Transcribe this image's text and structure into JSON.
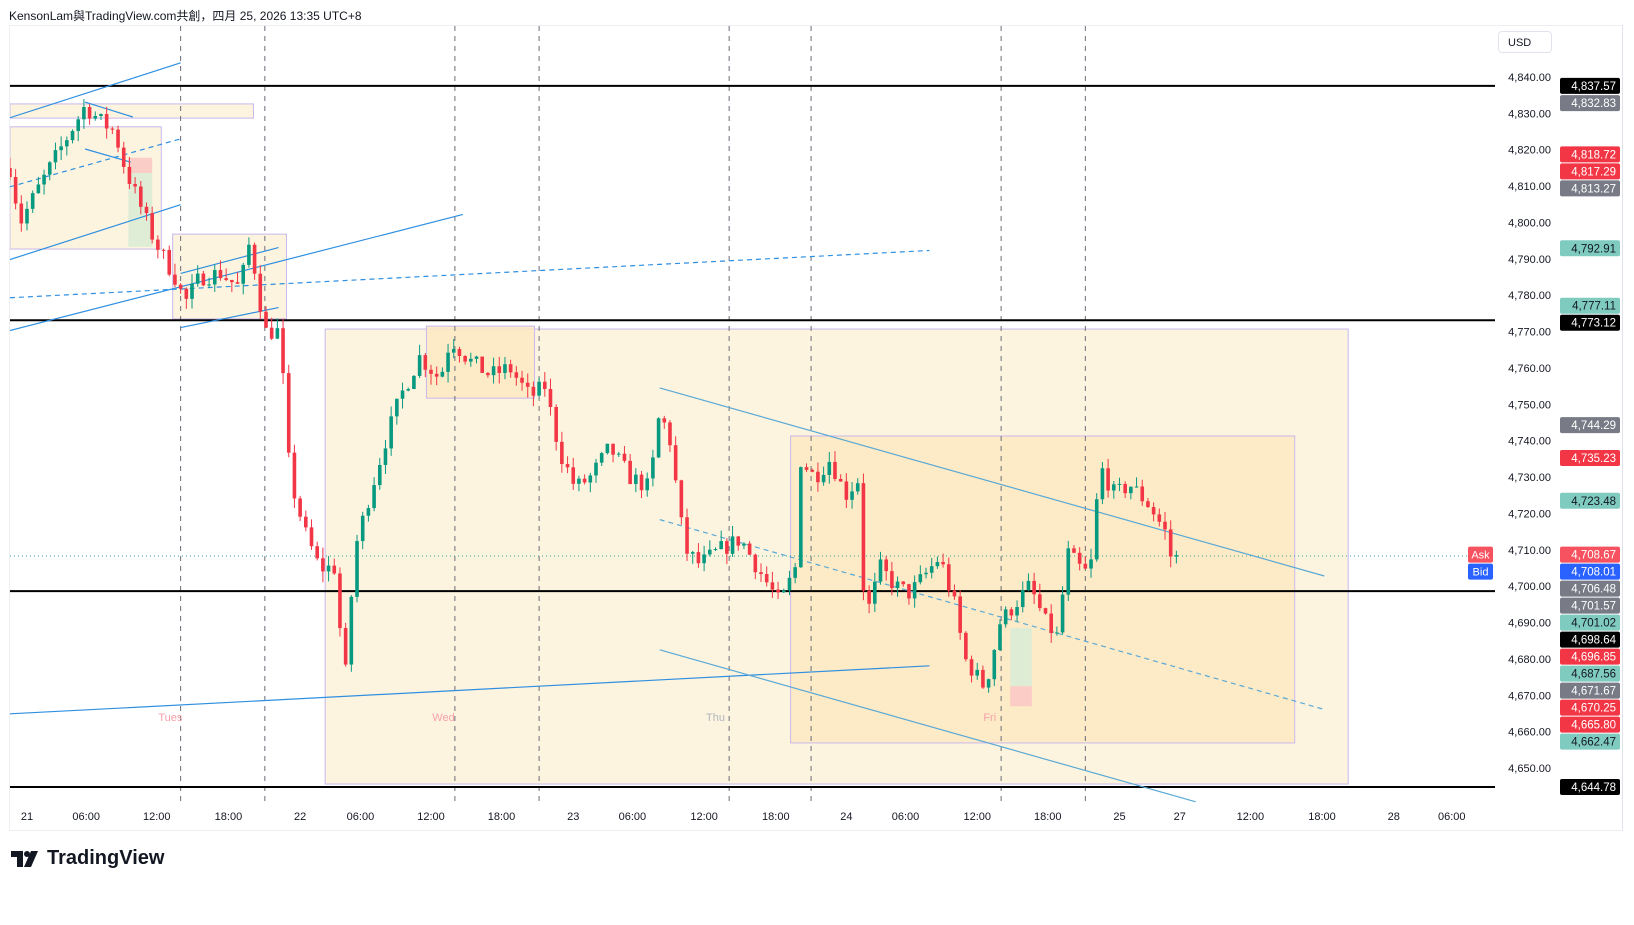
{
  "header": {
    "title": "KensonLam與TradingView.com共創，四月 25, 2026 13:35 UTC+8"
  },
  "currency_button": "USD",
  "logo": {
    "text": "TradingView"
  },
  "colors": {
    "up": "#089981",
    "down": "#f23645",
    "drawing_line": "#2f8fe0",
    "channel_line": "#5aa9d6",
    "rect_fill": "#fdf3dc",
    "rect_fill_dark": "#fde8c2",
    "rect_border": "#c9b8ec",
    "label_gray": "#787b86",
    "label_red": "#f23645",
    "label_teal": "#7fcbc0",
    "label_black": "#000000",
    "ask": "#f7525f",
    "bid": "#2962ff"
  },
  "chart_data": {
    "type": "candlestick",
    "title": "",
    "ylabel": "USD",
    "ylim": [
      4640,
      4850
    ],
    "yticks": [
      "4,840.00",
      "4,830.00",
      "4,820.00",
      "4,810.00",
      "4,800.00",
      "4,790.00",
      "4,780.00",
      "4,770.00",
      "4,760.00",
      "4,750.00",
      "4,740.00",
      "4,730.00",
      "4,720.00",
      "4,710.00",
      "4,700.00",
      "4,690.00",
      "4,680.00",
      "4,670.00",
      "4,660.00",
      "4,650.00"
    ],
    "ytick_values": [
      4840,
      4830,
      4820,
      4810,
      4800,
      4790,
      4780,
      4770,
      4760,
      4750,
      4740,
      4730,
      4720,
      4710,
      4700,
      4690,
      4680,
      4670,
      4660,
      4650
    ],
    "time_unit": "hours since Apr 21 00:00",
    "xticks": [
      {
        "label": "21",
        "h": 0
      },
      {
        "label": "06:00",
        "h": 5.2
      },
      {
        "label": "12:00",
        "h": 11.4
      },
      {
        "label": "18:00",
        "h": 17.7
      },
      {
        "label": "22",
        "h": 24
      },
      {
        "label": "06:00",
        "h": 29.3
      },
      {
        "label": "12:00",
        "h": 35.5
      },
      {
        "label": "18:00",
        "h": 41.7
      },
      {
        "label": "23",
        "h": 48
      },
      {
        "label": "06:00",
        "h": 53.2
      },
      {
        "label": "12:00",
        "h": 59.5
      },
      {
        "label": "18:00",
        "h": 65.8
      },
      {
        "label": "24",
        "h": 72
      },
      {
        "label": "06:00",
        "h": 77.2
      },
      {
        "label": "12:00",
        "h": 83.5
      },
      {
        "label": "18:00",
        "h": 89.7
      },
      {
        "label": "25",
        "h": 96
      },
      {
        "label": "27",
        "h": 101.3
      },
      {
        "label": "12:00",
        "h": 107.5
      },
      {
        "label": "18:00",
        "h": 113.8
      },
      {
        "label": "28",
        "h": 120.1
      },
      {
        "label": "06:00",
        "h": 125.2
      }
    ],
    "day_labels": [
      {
        "label": "Tues",
        "h": 12.6
      },
      {
        "label": "Wed",
        "h": 36.6
      },
      {
        "label": "Thu",
        "h": 60.5
      },
      {
        "label": "Fri",
        "h": 84.6
      }
    ],
    "session_lines_h": [
      13.5,
      20.9,
      37.6,
      45,
      61.7,
      68.9,
      85.6,
      93
    ],
    "price_path": [
      [
        -1.5,
        4815
      ],
      [
        -0.6,
        4800
      ],
      [
        1.1,
        4810
      ],
      [
        2.9,
        4820
      ],
      [
        5.1,
        4832
      ],
      [
        6.4,
        4828
      ],
      [
        7.7,
        4825
      ],
      [
        8.6,
        4815
      ],
      [
        9.9,
        4805
      ],
      [
        11.2,
        4795
      ],
      [
        13,
        4785
      ],
      [
        13.9,
        4778
      ],
      [
        15.2,
        4785
      ],
      [
        17,
        4786
      ],
      [
        18.7,
        4782
      ],
      [
        19.6,
        4795
      ],
      [
        20.9,
        4770
      ],
      [
        22.2,
        4770
      ],
      [
        23.1,
        4730
      ],
      [
        24.4,
        4715
      ],
      [
        25.7,
        4705
      ],
      [
        27.1,
        4705
      ],
      [
        27.9,
        4672
      ],
      [
        28.8,
        4710
      ],
      [
        30.1,
        4725
      ],
      [
        31.5,
        4740
      ],
      [
        32.8,
        4752
      ],
      [
        34.5,
        4763
      ],
      [
        36.3,
        4757
      ],
      [
        37.2,
        4768
      ],
      [
        38.9,
        4762
      ],
      [
        40.7,
        4758
      ],
      [
        42.4,
        4760
      ],
      [
        44.2,
        4752
      ],
      [
        45.5,
        4755
      ],
      [
        46.8,
        4737
      ],
      [
        48.2,
        4727
      ],
      [
        49.5,
        4730
      ],
      [
        51.2,
        4738
      ],
      [
        53,
        4730
      ],
      [
        54.7,
        4727
      ],
      [
        55.6,
        4748
      ],
      [
        56.5,
        4740
      ],
      [
        57.8,
        4710
      ],
      [
        59.1,
        4706
      ],
      [
        60.9,
        4710
      ],
      [
        62.7,
        4713
      ],
      [
        64.4,
        4704
      ],
      [
        66.2,
        4695
      ],
      [
        67.5,
        4705
      ],
      [
        67.9,
        4735
      ],
      [
        69.2,
        4730
      ],
      [
        70.6,
        4735
      ],
      [
        71.9,
        4725
      ],
      [
        73.2,
        4730
      ],
      [
        73.6,
        4690
      ],
      [
        75,
        4705
      ],
      [
        76.3,
        4700
      ],
      [
        77.6,
        4698
      ],
      [
        78.9,
        4703
      ],
      [
        80.2,
        4708
      ],
      [
        81.5,
        4695
      ],
      [
        82.4,
        4680
      ],
      [
        84.2,
        4672
      ],
      [
        85.5,
        4690
      ],
      [
        86.8,
        4695
      ],
      [
        88.1,
        4700
      ],
      [
        89.5,
        4690
      ],
      [
        90.8,
        4685
      ],
      [
        91.2,
        4710
      ],
      [
        92.5,
        4705
      ],
      [
        93.4,
        4703
      ],
      [
        94.3,
        4733
      ],
      [
        95.6,
        4725
      ],
      [
        96.9,
        4728
      ],
      [
        98.7,
        4722
      ],
      [
        100,
        4715
      ],
      [
        100.6,
        4707
      ],
      [
        101.1,
        4708
      ]
    ],
    "horizontal_lines": [
      4837.57,
      4773.12,
      4698.64,
      4644.78
    ],
    "bid_ask_line": 4708.3,
    "rectangles": [
      {
        "h": [
          -1.5,
          19.9
        ],
        "p": [
          4832.6,
          4828.7
        ],
        "tone": "light"
      },
      {
        "h": [
          -1.5,
          11.8
        ],
        "p": [
          4826.3,
          4792.7
        ],
        "tone": "light"
      },
      {
        "h": [
          12.8,
          22.8
        ],
        "p": [
          4796.8,
          4773.5
        ],
        "tone": "light"
      },
      {
        "h": [
          26.2,
          116.1
        ],
        "p": [
          4770.7,
          4645.6
        ],
        "tone": "light"
      },
      {
        "h": [
          35.1,
          44.6
        ],
        "p": [
          4771.5,
          4751.7
        ],
        "tone": "dark"
      },
      {
        "h": [
          67.1,
          111.4
        ],
        "p": [
          4741.3,
          4656.9
        ],
        "tone": "dark"
      },
      {
        "h": [
          8.9,
          11
        ],
        "p": [
          4817.8,
          4813.6
        ],
        "tone": "loss"
      },
      {
        "h": [
          8.9,
          11
        ],
        "p": [
          4813.6,
          4793.3
        ],
        "tone": "profit"
      },
      {
        "h": [
          86.4,
          88.3
        ],
        "p": [
          4688.5,
          4672.5
        ],
        "tone": "profit"
      },
      {
        "h": [
          86.4,
          88.3
        ],
        "p": [
          4672.5,
          4667
        ],
        "tone": "loss"
      }
    ],
    "trend_lines": [
      {
        "a": [
          -1.5,
          4828.8
        ],
        "b": [
          13.5,
          4843.9
        ],
        "style": "solid"
      },
      {
        "a": [
          -1.5,
          4789.8
        ],
        "b": [
          13.5,
          4804.9
        ],
        "style": "solid"
      },
      {
        "a": [
          -1.5,
          4770.3
        ],
        "b": [
          38.3,
          4802.2
        ],
        "style": "solid"
      },
      {
        "a": [
          -1.5,
          4779.3
        ],
        "b": [
          79.3,
          4792.3
        ],
        "style": "dashed"
      },
      {
        "a": [
          -1.5,
          4664.9
        ],
        "b": [
          79.3,
          4678.1
        ],
        "style": "solid"
      },
      {
        "a": [
          -1.5,
          4809.8
        ],
        "b": [
          13.5,
          4823
        ],
        "style": "dashed"
      },
      {
        "a": [
          5.1,
          4833.1
        ],
        "b": [
          9.3,
          4829
        ],
        "style": "solid"
      },
      {
        "a": [
          5.1,
          4820.2
        ],
        "b": [
          9.1,
          4816.6
        ],
        "style": "solid"
      },
      {
        "a": [
          13.5,
          4786
        ],
        "b": [
          22.1,
          4793.1
        ],
        "style": "solid"
      },
      {
        "a": [
          13.5,
          4771.1
        ],
        "b": [
          22.1,
          4776.6
        ],
        "style": "solid"
      },
      {
        "a": [
          55.6,
          4754.5
        ],
        "b": [
          114,
          4702.8
        ],
        "style": "channel"
      },
      {
        "a": [
          55.6,
          4682.5
        ],
        "b": [
          102.7,
          4640.7
        ],
        "style": "channel"
      },
      {
        "a": [
          55.6,
          4718.3
        ],
        "b": [
          114,
          4666.1
        ],
        "style": "channel-dashed"
      }
    ]
  },
  "price_labels": [
    {
      "price": "4,837.57",
      "v": 4837.57,
      "kind": "black"
    },
    {
      "price": "4,832.83",
      "v": 4832.83,
      "kind": "gray"
    },
    {
      "price": "4,818.72",
      "v": 4818.72,
      "kind": "red"
    },
    {
      "price": "4,817.29",
      "v": 4817.29,
      "kind": "red"
    },
    {
      "price": "4,813.27",
      "v": 4813.27,
      "kind": "gray"
    },
    {
      "price": "4,792.91",
      "v": 4792.91,
      "kind": "teal"
    },
    {
      "price": "4,777.11",
      "v": 4777.11,
      "kind": "teal"
    },
    {
      "price": "4,773.12",
      "v": 4773.12,
      "kind": "black"
    },
    {
      "price": "4,744.29",
      "v": 4744.29,
      "kind": "gray"
    },
    {
      "price": "4,735.23",
      "v": 4735.23,
      "kind": "red"
    },
    {
      "price": "4,723.48",
      "v": 4723.48,
      "kind": "teal"
    },
    {
      "price": "4,708.67",
      "v": 4708.67,
      "kind": "ask",
      "tag": "Ask"
    },
    {
      "price": "4,708.01",
      "v": 4708.01,
      "kind": "bid",
      "tag": "Bid"
    },
    {
      "price": "4,706.48",
      "v": 4706.48,
      "kind": "gray"
    },
    {
      "price": "4,701.57",
      "v": 4701.57,
      "kind": "gray"
    },
    {
      "price": "4,701.02",
      "v": 4701.02,
      "kind": "teal"
    },
    {
      "price": "4,698.64",
      "v": 4698.64,
      "kind": "black"
    },
    {
      "price": "4,696.85",
      "v": 4696.85,
      "kind": "red"
    },
    {
      "price": "4,687.56",
      "v": 4687.56,
      "kind": "teal"
    },
    {
      "price": "4,671.67",
      "v": 4671.67,
      "kind": "gray"
    },
    {
      "price": "4,670.25",
      "v": 4670.25,
      "kind": "red"
    },
    {
      "price": "4,665.80",
      "v": 4665.8,
      "kind": "red"
    },
    {
      "price": "4,662.47",
      "v": 4662.47,
      "kind": "teal"
    },
    {
      "price": "4,644.78",
      "v": 4644.78,
      "kind": "black"
    }
  ]
}
